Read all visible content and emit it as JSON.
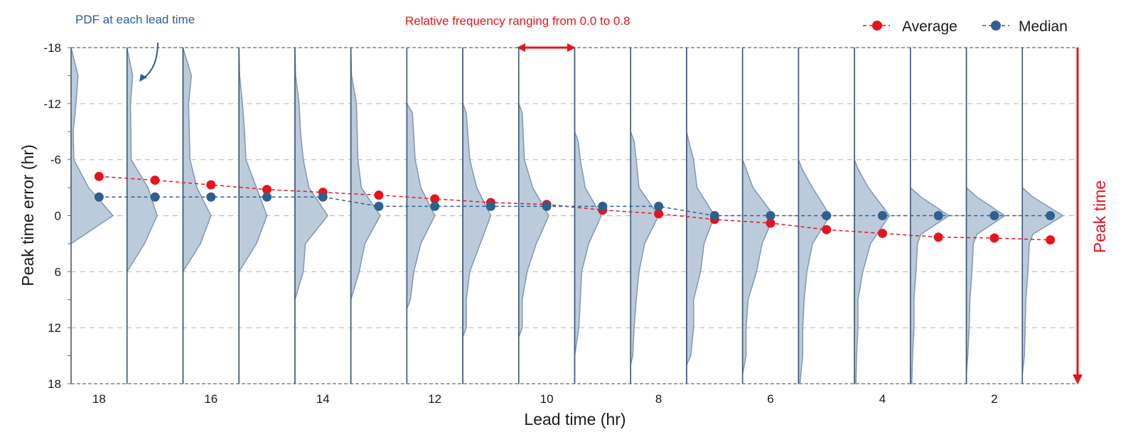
{
  "chart_data": {
    "type": "scatter",
    "xlabel": "Lead time (hr)",
    "ylabel": "Peak time error (hr)",
    "x_ticks": [
      "18",
      "16",
      "14",
      "12",
      "10",
      "8",
      "6",
      "4",
      "2"
    ],
    "y_ticks": [
      "-18",
      "-12",
      "-6",
      "0",
      "6",
      "12",
      "18"
    ],
    "ylim": [
      -18,
      18
    ],
    "grid": true,
    "legend_position": "top-right",
    "lead_times": [
      18,
      17,
      16,
      15,
      14,
      13,
      12,
      11,
      10,
      9,
      8,
      7,
      6,
      5,
      4,
      3,
      2,
      1
    ],
    "series": [
      {
        "name": "Average",
        "color": "#e8141c",
        "values": [
          -4.2,
          -3.8,
          -3.3,
          -2.8,
          -2.5,
          -2.2,
          -1.8,
          -1.4,
          -1.2,
          -0.6,
          -0.2,
          0.4,
          0.8,
          1.5,
          1.9,
          2.3,
          2.4,
          2.6
        ]
      },
      {
        "name": "Median",
        "color": "#2e5f8f",
        "values": [
          -2,
          -2,
          -2,
          -2,
          -2,
          -1,
          -1,
          -1,
          -1,
          -1,
          -1,
          0,
          0,
          0,
          0,
          0,
          0,
          0
        ]
      }
    ],
    "pdf_profiles": [
      [
        [
          -18,
          0
        ],
        [
          -15,
          0.1
        ],
        [
          -12,
          0.07
        ],
        [
          -9,
          0.03
        ],
        [
          -6,
          0.04
        ],
        [
          -3,
          0.25
        ],
        [
          0,
          0.6
        ],
        [
          3,
          0.0
        ],
        [
          6,
          0
        ],
        [
          12,
          0
        ],
        [
          18,
          0
        ]
      ],
      [
        [
          -18,
          0
        ],
        [
          -15,
          0.08
        ],
        [
          -12,
          0.05
        ],
        [
          -6,
          0.06
        ],
        [
          -3,
          0.3
        ],
        [
          0,
          0.43
        ],
        [
          3,
          0.25
        ],
        [
          6,
          0
        ],
        [
          18,
          0
        ]
      ],
      [
        [
          -18,
          0
        ],
        [
          -15,
          0.12
        ],
        [
          -12,
          0.08
        ],
        [
          -6,
          0.1
        ],
        [
          -3,
          0.2
        ],
        [
          0,
          0.4
        ],
        [
          3,
          0.25
        ],
        [
          6,
          0
        ],
        [
          18,
          0
        ]
      ],
      [
        [
          -18,
          0
        ],
        [
          -15,
          0.01
        ],
        [
          -12,
          0.05
        ],
        [
          -9,
          0.08
        ],
        [
          -6,
          0.1
        ],
        [
          -3,
          0.25
        ],
        [
          0,
          0.4
        ],
        [
          3,
          0.25
        ],
        [
          6,
          0
        ],
        [
          18,
          0
        ]
      ],
      [
        [
          -18,
          0
        ],
        [
          -15,
          0.01
        ],
        [
          -12,
          0.06
        ],
        [
          -9,
          0.08
        ],
        [
          -6,
          0.12
        ],
        [
          -3,
          0.2
        ],
        [
          0,
          0.47
        ],
        [
          3,
          0.15
        ],
        [
          6,
          0.12
        ],
        [
          9,
          0
        ],
        [
          18,
          0
        ]
      ],
      [
        [
          -18,
          0
        ],
        [
          -15,
          0.01
        ],
        [
          -12,
          0.08
        ],
        [
          -6,
          0.1
        ],
        [
          -3,
          0.15
        ],
        [
          0,
          0.42
        ],
        [
          3,
          0.2
        ],
        [
          6,
          0.12
        ],
        [
          9,
          0
        ],
        [
          18,
          0
        ]
      ],
      [
        [
          -18,
          0
        ],
        [
          -12,
          0
        ],
        [
          -11,
          0.08
        ],
        [
          -6,
          0.12
        ],
        [
          -3,
          0.2
        ],
        [
          0,
          0.4
        ],
        [
          3,
          0.2
        ],
        [
          6,
          0.1
        ],
        [
          9,
          0.05
        ],
        [
          10,
          0
        ],
        [
          18,
          0
        ]
      ],
      [
        [
          -18,
          0
        ],
        [
          -12,
          0
        ],
        [
          -11,
          0.05
        ],
        [
          -6,
          0.1
        ],
        [
          -3,
          0.2
        ],
        [
          0,
          0.4
        ],
        [
          3,
          0.25
        ],
        [
          6,
          0.1
        ],
        [
          9,
          0.05
        ],
        [
          12,
          0.05
        ],
        [
          13,
          0
        ],
        [
          18,
          0
        ]
      ],
      [
        [
          -18,
          0
        ],
        [
          -12,
          0
        ],
        [
          -11,
          0.05
        ],
        [
          -6,
          0.08
        ],
        [
          -3,
          0.2
        ],
        [
          0,
          0.43
        ],
        [
          3,
          0.25
        ],
        [
          6,
          0.12
        ],
        [
          9,
          0.05
        ],
        [
          12,
          0.05
        ],
        [
          13,
          0
        ],
        [
          18,
          0
        ]
      ],
      [
        [
          -18,
          0
        ],
        [
          -9,
          0
        ],
        [
          -8,
          0.05
        ],
        [
          -6,
          0.08
        ],
        [
          -3,
          0.15
        ],
        [
          0,
          0.38
        ],
        [
          3,
          0.2
        ],
        [
          6,
          0.1
        ],
        [
          9,
          0.08
        ],
        [
          12,
          0.06
        ],
        [
          15,
          0
        ],
        [
          18,
          0
        ]
      ],
      [
        [
          -18,
          0
        ],
        [
          -9,
          0
        ],
        [
          -8,
          0.05
        ],
        [
          -6,
          0.08
        ],
        [
          -3,
          0.12
        ],
        [
          0,
          0.4
        ],
        [
          3,
          0.2
        ],
        [
          6,
          0.12
        ],
        [
          9,
          0.08
        ],
        [
          12,
          0.05
        ],
        [
          15,
          0.03
        ],
        [
          16,
          0
        ],
        [
          18,
          0
        ]
      ],
      [
        [
          -18,
          0
        ],
        [
          -9,
          0
        ],
        [
          -8,
          0.03
        ],
        [
          -6,
          0.1
        ],
        [
          -3,
          0.15
        ],
        [
          0,
          0.4
        ],
        [
          3,
          0.25
        ],
        [
          6,
          0.2
        ],
        [
          9,
          0.1
        ],
        [
          12,
          0.1
        ],
        [
          15,
          0.06
        ],
        [
          16,
          0
        ],
        [
          18,
          0
        ]
      ],
      [
        [
          -18,
          0
        ],
        [
          -6,
          0
        ],
        [
          -5,
          0.05
        ],
        [
          -3,
          0.15
        ],
        [
          0,
          0.45
        ],
        [
          3,
          0.28
        ],
        [
          6,
          0.2
        ],
        [
          9,
          0.08
        ],
        [
          12,
          0.05
        ],
        [
          15,
          0.05
        ],
        [
          17,
          0
        ],
        [
          18,
          0
        ]
      ],
      [
        [
          -18,
          0
        ],
        [
          -6,
          0
        ],
        [
          -5,
          0.05
        ],
        [
          -3,
          0.2
        ],
        [
          0,
          0.45
        ],
        [
          3,
          0.2
        ],
        [
          6,
          0.12
        ],
        [
          9,
          0.08
        ],
        [
          12,
          0.06
        ],
        [
          15,
          0.06
        ],
        [
          18,
          0.02
        ]
      ],
      [
        [
          -18,
          0
        ],
        [
          -6,
          0
        ],
        [
          -5,
          0.05
        ],
        [
          -3,
          0.2
        ],
        [
          0,
          0.5
        ],
        [
          3,
          0.23
        ],
        [
          6,
          0.12
        ],
        [
          9,
          0.05
        ],
        [
          12,
          0.05
        ],
        [
          15,
          0.03
        ],
        [
          18,
          0.02
        ]
      ],
      [
        [
          -18,
          0
        ],
        [
          -3,
          0
        ],
        [
          -2,
          0.15
        ],
        [
          0,
          0.55
        ],
        [
          2,
          0.15
        ],
        [
          3,
          0.1
        ],
        [
          6,
          0.08
        ],
        [
          9,
          0.05
        ],
        [
          12,
          0.05
        ],
        [
          15,
          0.03
        ],
        [
          18,
          0.02
        ]
      ],
      [
        [
          -18,
          0
        ],
        [
          -3,
          0
        ],
        [
          -2,
          0.15
        ],
        [
          0,
          0.55
        ],
        [
          2,
          0.15
        ],
        [
          3,
          0.1
        ],
        [
          6,
          0.08
        ],
        [
          9,
          0.05
        ],
        [
          12,
          0.04
        ],
        [
          15,
          0.02
        ],
        [
          17,
          0
        ],
        [
          18,
          0
        ]
      ],
      [
        [
          -18,
          0
        ],
        [
          -3,
          0
        ],
        [
          -2,
          0.15
        ],
        [
          0,
          0.58
        ],
        [
          2,
          0.15
        ],
        [
          3,
          0.1
        ],
        [
          6,
          0.08
        ],
        [
          9,
          0.05
        ],
        [
          12,
          0.04
        ],
        [
          15,
          0.03
        ],
        [
          17,
          0
        ],
        [
          18,
          0
        ]
      ]
    ]
  },
  "annotations": {
    "pdf_label": "PDF at each lead time",
    "frequency_label": "Relative frequency ranging from 0.0 to 0.8",
    "peak_label": "Peak time"
  }
}
